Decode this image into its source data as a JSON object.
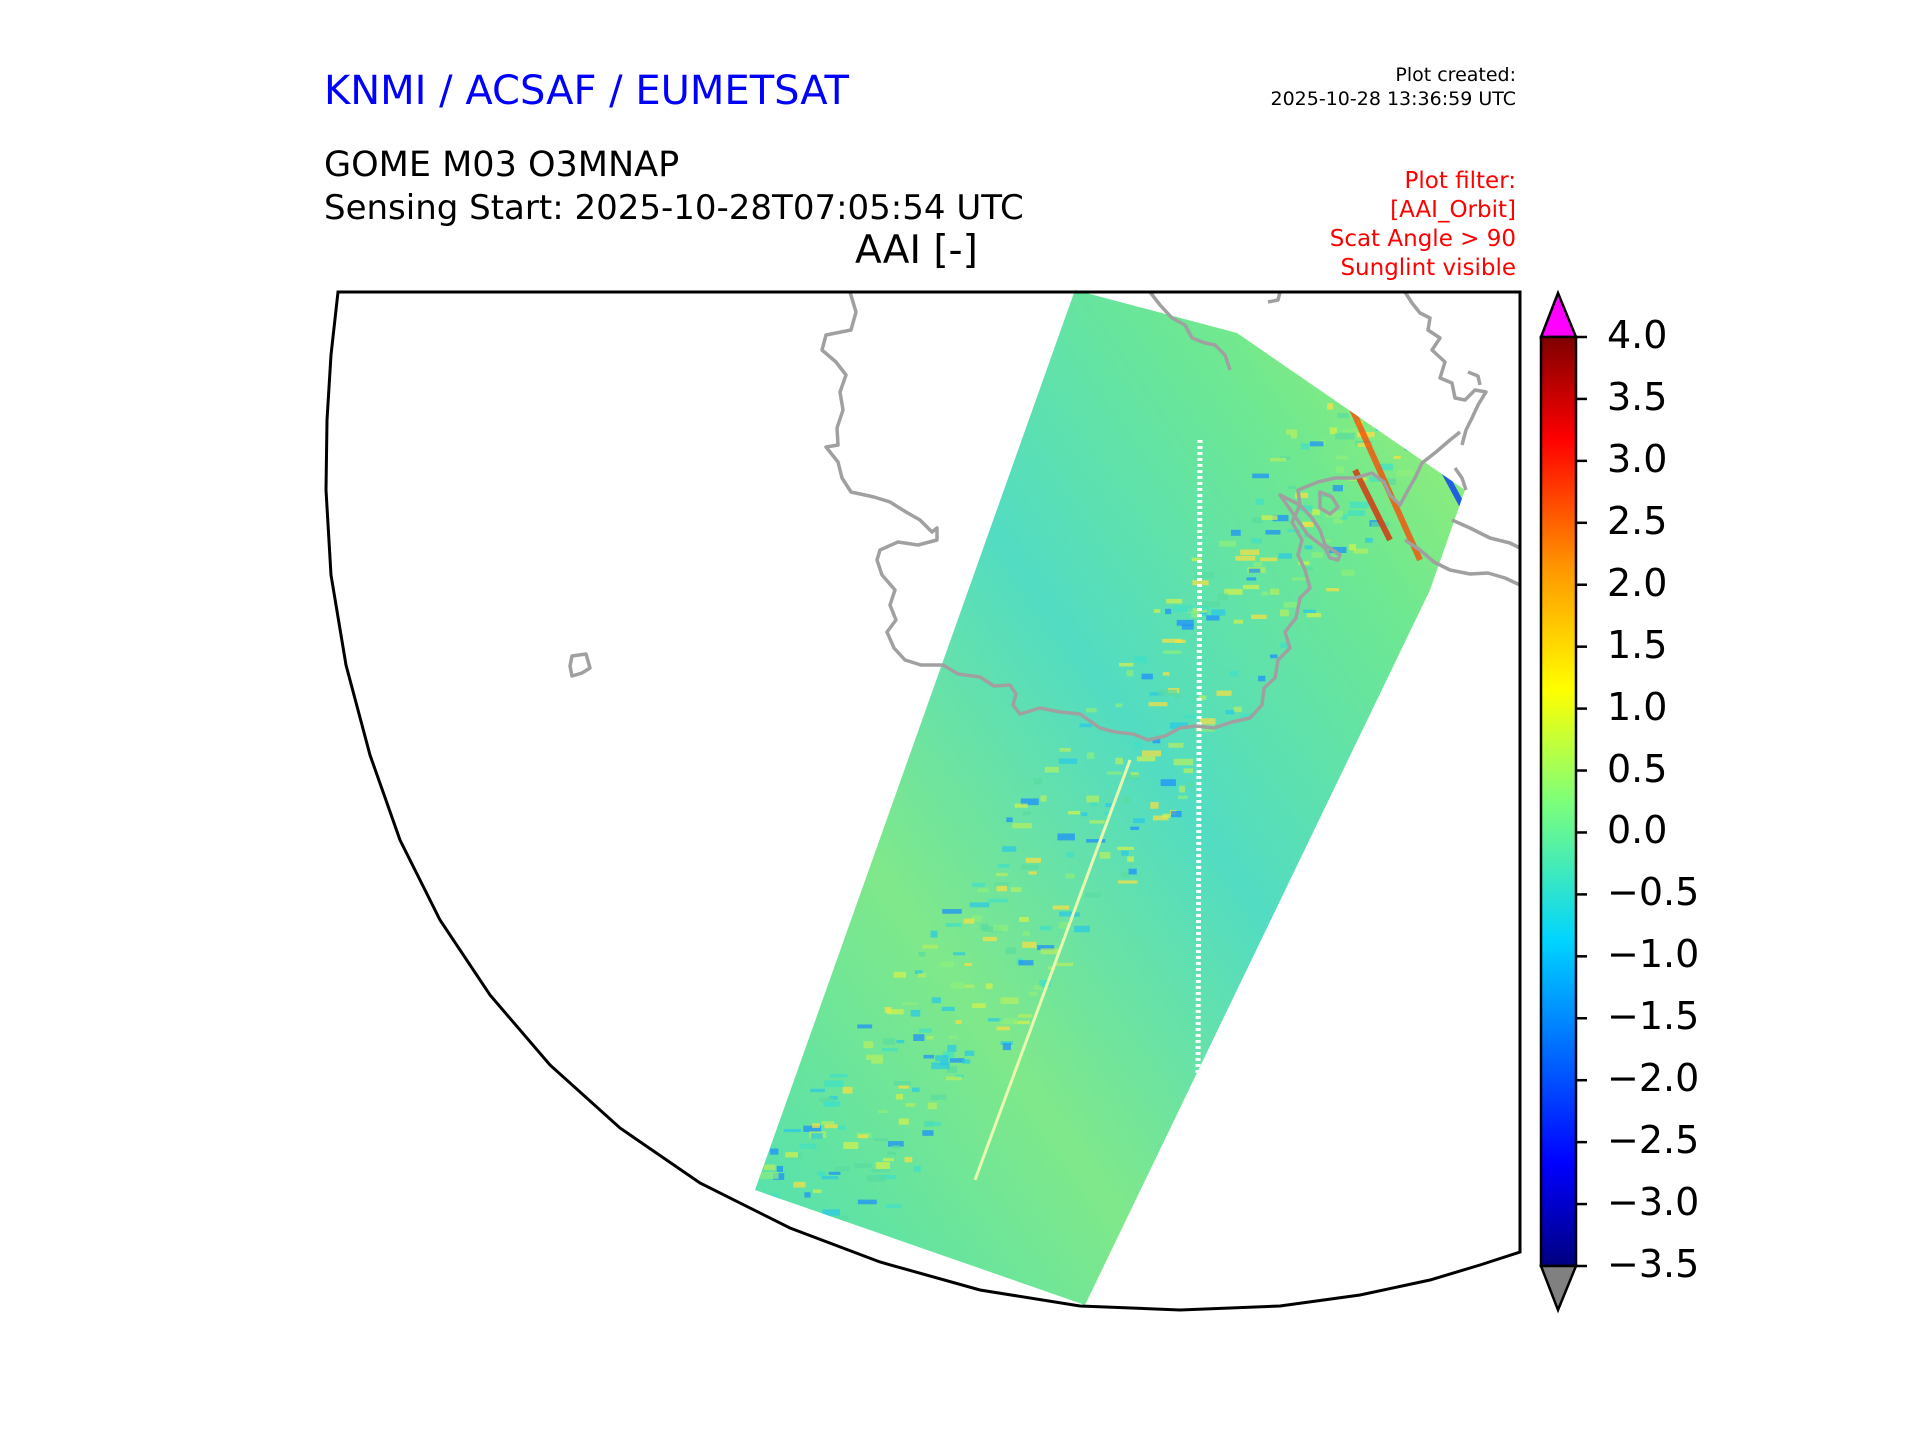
{
  "header": {
    "organisation": "KNMI / ACSAF / EUMETSAT",
    "plot_created_label": "Plot created:",
    "plot_created_time": "2025-10-28 13:36:59 UTC",
    "product": "GOME M03 O3MNAP",
    "sensing_start": "Sensing Start: 2025-10-28T07:05:54 UTC",
    "quantity": "AAI [-]"
  },
  "plot_filter": {
    "lines": [
      "Plot filter:",
      "[AAI_Orbit]",
      "Scat Angle > 90",
      "Sunglint visible"
    ]
  },
  "colorbar": {
    "min": -3.5,
    "max": 4.0,
    "tick_labels": [
      "4.0",
      "3.5",
      "3.0",
      "2.5",
      "2.0",
      "1.5",
      "1.0",
      "0.5",
      "0.0",
      "−0.5",
      "−1.0",
      "−1.5",
      "−2.0",
      "−2.5",
      "−3.0",
      "−3.5"
    ],
    "colormap": "jet",
    "extend_max_color": "#ff00ff",
    "extend_min_color": "#808080"
  },
  "map": {
    "coastline_color": "#a0a0a0",
    "frame_color": "#000000"
  }
}
